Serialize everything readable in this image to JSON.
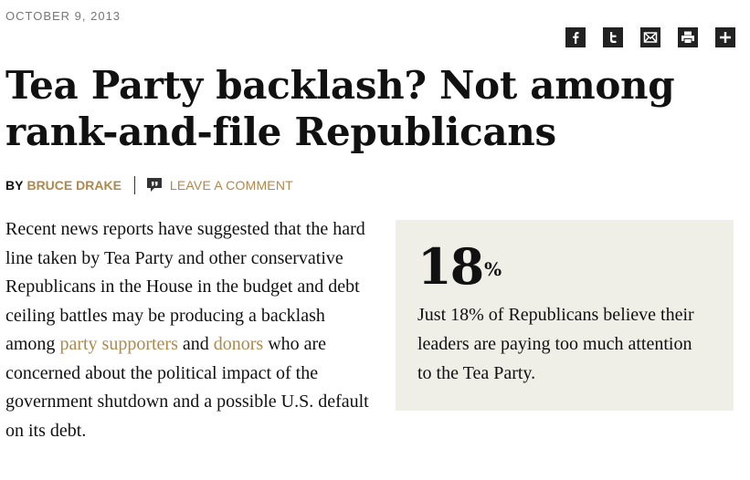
{
  "article": {
    "date": "OCTOBER 9, 2013",
    "title": "Tea Party backlash? Not among rank-and-file Republicans",
    "byline": {
      "prefix": "BY",
      "author": "BRUCE DRAKE",
      "comment_link": "LEAVE A COMMENT"
    },
    "body": {
      "p1_before": "Recent news reports have suggested that the hard line taken by Tea Party and other conservative Republicans in the House in the budget and debt ceiling battles may be producing a backlash among ",
      "link1": "party supporters",
      "p1_middle": " and ",
      "link2": "donors",
      "p1_after": " who are concerned about the political impact of the government shutdown and a possible U.S. default on its debt."
    }
  },
  "share": {
    "icons": [
      "facebook-icon",
      "twitter-icon",
      "email-icon",
      "print-icon",
      "plus-icon"
    ]
  },
  "callout": {
    "number": "18",
    "unit": "%",
    "text": "Just 18% of Republicans believe their leaders are paying too much attention to the Tea Party."
  },
  "colors": {
    "accent": "#b0884a",
    "callout_bg": "#efeee7",
    "icon_bg": "#222222"
  }
}
